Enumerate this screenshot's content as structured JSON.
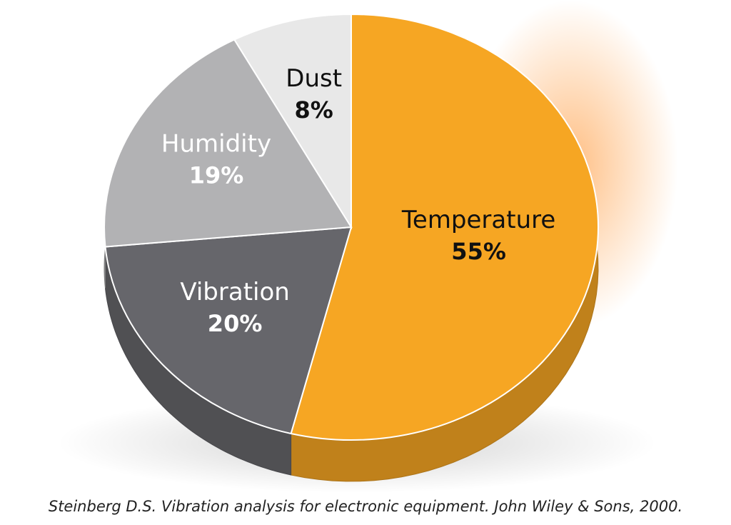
{
  "chart_data": {
    "type": "pie",
    "categories": [
      "Temperature",
      "Vibration",
      "Humidity",
      "Dust"
    ],
    "values": [
      55,
      20,
      19,
      8
    ],
    "value_labels": [
      "55%",
      "20%",
      "19%",
      "8%"
    ],
    "colors": [
      "#f6a623",
      "#66666b",
      "#b2b2b4",
      "#e8e8e8"
    ],
    "label_colors": [
      "#111111",
      "#ffffff",
      "#ffffff",
      "#111111"
    ],
    "caption": "Steinberg D.S. Vibration analysis for electronic equipment. John Wiley & Sons, 2000."
  }
}
